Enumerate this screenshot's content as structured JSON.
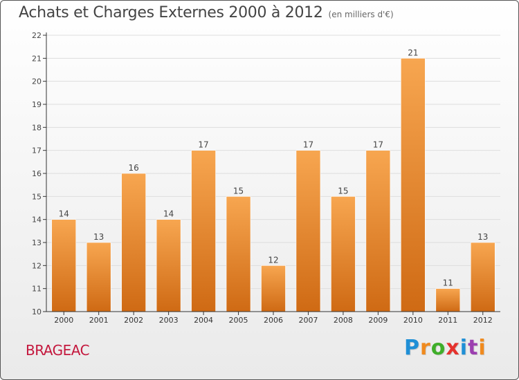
{
  "header": {
    "title": "Achats et Charges Externes 2000 à 2012",
    "subtitle": "(en milliers d'€)"
  },
  "footer": {
    "place": "BRAGEAC",
    "logo_letters": [
      "P",
      "r",
      "o",
      "x",
      "i",
      "t",
      "i"
    ]
  },
  "colors": {
    "bar_light": "#f7a650",
    "bar_dark": "#cf6a14",
    "axis": "#333333",
    "grid": "#dddddd",
    "place_text": "#c4173d"
  },
  "chart_data": {
    "type": "bar",
    "title": "Achats et Charges Externes 2000 à 2012",
    "subtitle": "(en milliers d'€)",
    "categories": [
      "2000",
      "2001",
      "2002",
      "2003",
      "2004",
      "2005",
      "2006",
      "2007",
      "2008",
      "2009",
      "2010",
      "2011",
      "2012"
    ],
    "values": [
      14,
      13,
      16,
      14,
      17,
      15,
      12,
      17,
      15,
      17,
      21,
      11,
      13
    ],
    "ylim": [
      10,
      22
    ],
    "yticks": [
      10,
      11,
      12,
      13,
      14,
      15,
      16,
      17,
      18,
      19,
      20,
      21,
      22
    ],
    "grid": true,
    "xlabel": "",
    "ylabel": ""
  }
}
